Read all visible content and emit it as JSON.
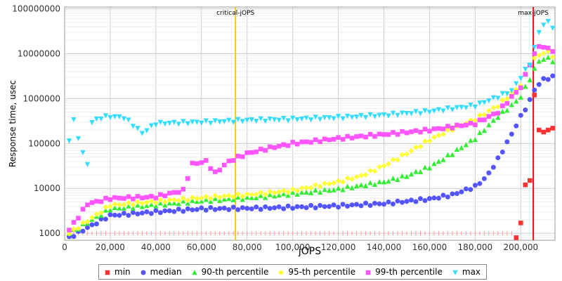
{
  "chart_data": {
    "type": "scatter",
    "title": "",
    "xlabel": "jOPS",
    "ylabel": "Response time, usec",
    "xlim": [
      0,
      215000
    ],
    "ylim": [
      700,
      110000000
    ],
    "y_scale": "log",
    "x_ticks": [
      0,
      20000,
      40000,
      60000,
      80000,
      100000,
      120000,
      140000,
      160000,
      180000,
      200000
    ],
    "x_tick_labels": [
      "0",
      "20,000",
      "40,000",
      "60,000",
      "80,000",
      "100,000",
      "120,000",
      "140,000",
      "160,000",
      "180,000",
      "200,000"
    ],
    "y_ticks": [
      1000,
      10000,
      100000,
      1000000,
      10000000,
      100000000
    ],
    "y_tick_labels": [
      "1000",
      "10000",
      "100000",
      "1000000",
      "10000000",
      "100000000"
    ],
    "grid": true,
    "legend_position": "bottom",
    "markers": [
      {
        "label": "critical-jOPS",
        "x": 74900,
        "color": "#ffc800"
      },
      {
        "label": "max-jOPS",
        "x": 205500,
        "color": "#ff0000"
      }
    ],
    "series": [
      {
        "name": "min",
        "color": "#ff3333",
        "marker": "square",
        "x": [
          2000,
          198000,
          200000,
          202000,
          204000,
          206000,
          208000,
          210000,
          212000,
          214000
        ],
        "y": [
          1000,
          800,
          1700,
          12000,
          15000,
          1200000,
          200000,
          180000,
          200000,
          220000
        ],
        "floor_start": 2000,
        "floor_end": 198000,
        "floor_step": 2000,
        "floor_value": 1000
      },
      {
        "name": "median",
        "color": "#5555ff",
        "marker": "circle",
        "x": [
          2000,
          20000,
          40000,
          60000,
          80000,
          100000,
          120000,
          140000,
          160000,
          170000,
          180000,
          185000,
          190000,
          195000,
          200000,
          204000,
          206000,
          210000,
          214000
        ],
        "y": [
          800,
          2500,
          3000,
          3500,
          3600,
          3800,
          4100,
          4600,
          5800,
          7200,
          11000,
          18000,
          45000,
          130000,
          400000,
          900000,
          1600000,
          2700000,
          3000000
        ]
      },
      {
        "name": "90-th percentile",
        "color": "#33ee33",
        "marker": "triangle-up",
        "x": [
          2000,
          20000,
          40000,
          60000,
          80000,
          100000,
          120000,
          140000,
          150000,
          160000,
          170000,
          180000,
          190000,
          196000,
          200000,
          204000,
          208000,
          212000,
          214000
        ],
        "y": [
          1000,
          3500,
          4300,
          5300,
          6100,
          7600,
          9600,
          14000,
          19000,
          30000,
          60000,
          130000,
          400000,
          700000,
          1100000,
          2800000,
          7000000,
          8000000,
          7000000
        ]
      },
      {
        "name": "95-th percentile",
        "color": "#ffff33",
        "marker": "diamond",
        "x": [
          2000,
          20000,
          40000,
          60000,
          80000,
          100000,
          120000,
          130000,
          140000,
          150000,
          160000,
          170000,
          180000,
          190000,
          200000,
          204000,
          208000,
          212000,
          214000
        ],
        "y": [
          1000,
          4200,
          5100,
          6200,
          7200,
          9000,
          14000,
          19000,
          32000,
          60000,
          120000,
          210000,
          350000,
          700000,
          2000000,
          6000000,
          9500000,
          11000000,
          9000000
        ]
      },
      {
        "name": "99-th percentile",
        "color": "#ff55ff",
        "marker": "square",
        "x": [
          2000,
          10000,
          20000,
          40000,
          52000,
          56000,
          62000,
          66000,
          72000,
          80000,
          90000,
          100000,
          120000,
          140000,
          160000,
          180000,
          190000,
          200000,
          204000,
          208000,
          212000,
          214000
        ],
        "y": [
          1200,
          4500,
          6000,
          6500,
          9000,
          35000,
          40000,
          22000,
          40000,
          60000,
          80000,
          100000,
          130000,
          160000,
          200000,
          280000,
          500000,
          1800000,
          6000000,
          15000000,
          13000000,
          12000000
        ]
      },
      {
        "name": "max",
        "color": "#33ddff",
        "marker": "triangle-down",
        "x": [
          2000,
          4000,
          8000,
          10000,
          12000,
          16000,
          20000,
          26000,
          30000,
          34000,
          40000,
          60000,
          80000,
          100000,
          120000,
          140000,
          160000,
          180000,
          190000,
          196000,
          200000,
          204000,
          208000,
          210000,
          212000,
          214000
        ],
        "y": [
          120000,
          320000,
          60000,
          35000,
          300000,
          380000,
          400000,
          380000,
          260000,
          170000,
          280000,
          300000,
          330000,
          350000,
          380000,
          430000,
          520000,
          700000,
          1100000,
          1500000,
          3000000,
          6000000,
          30000000,
          45000000,
          50000000,
          40000000
        ]
      }
    ]
  }
}
